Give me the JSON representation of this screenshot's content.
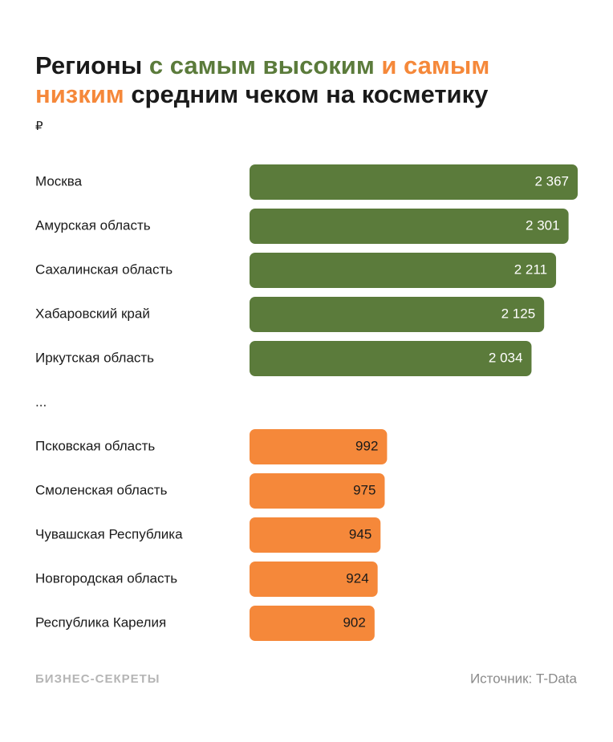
{
  "chart_data": {
    "type": "bar",
    "title_lines": [
      [
        {
          "text": "Регионы ",
          "color": "#1a1a1a"
        },
        {
          "text": "с самым высоким",
          "color": "#5b7b3b"
        },
        {
          "text": " и самым",
          "color": "#f5883a"
        }
      ],
      [
        {
          "text": "низким",
          "color": "#f5883a"
        },
        {
          "text": " средним чеком на косметику",
          "color": "#1a1a1a"
        }
      ]
    ],
    "unit": "₽",
    "categories": [
      "Москва",
      "Амурская область",
      "Сахалинская область",
      "Хабаровский край",
      "Иркутская область",
      "...",
      "Псковская область",
      "Смоленская область",
      "Чувашская Республика",
      "Новгородская область",
      "Республика Карелия"
    ],
    "values": [
      2367,
      2301,
      2211,
      2125,
      2034,
      null,
      992,
      975,
      945,
      924,
      902
    ],
    "value_labels": [
      "2 367",
      "2 301",
      "2 211",
      "2 125",
      "2 034",
      null,
      "992",
      "975",
      "945",
      "924",
      "902"
    ],
    "colors": [
      "#5b7b3b",
      "#5b7b3b",
      "#5b7b3b",
      "#5b7b3b",
      "#5b7b3b",
      null,
      "#f5883a",
      "#f5883a",
      "#f5883a",
      "#f5883a",
      "#f5883a"
    ],
    "brand": "БИЗНЕС-СЕКРЕТЫ",
    "source": "Источник: T-Data"
  }
}
